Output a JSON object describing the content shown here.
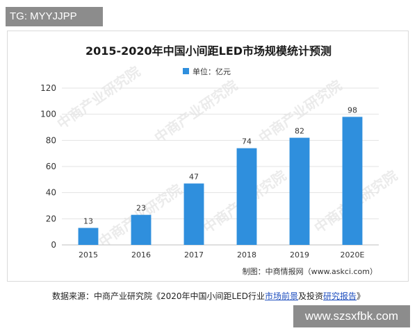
{
  "tag_label": "TG: MYYJJPP",
  "watermark_text": "中商产业研究院",
  "chart_data": {
    "type": "bar",
    "title": "2015-2020年中国小间距LED市场规模统计预测",
    "legend": "单位：亿元",
    "legend_position": "top-center",
    "categories": [
      "2015",
      "2016",
      "2017",
      "2018",
      "2019",
      "2020E"
    ],
    "series": [
      {
        "name": "单位：亿元",
        "values": [
          13,
          23,
          47,
          74,
          82,
          98
        ]
      }
    ],
    "data_labels": [
      "13",
      "23",
      "47",
      "74",
      "82",
      "98"
    ],
    "ylim": [
      0,
      120
    ],
    "yticks": [
      0,
      20,
      40,
      60,
      80,
      100,
      120
    ],
    "grid": true,
    "bar_color": "#2f8fdd",
    "credit": "制图：中商情报网（www.askci.com）"
  },
  "footer": {
    "prefix": "数据来源：中商产业研究院《2020年中国小间距LED行业",
    "link1": "市场前景",
    "middle": "及投资",
    "link2": "研究报告",
    "suffix": "》"
  },
  "url_badge": "www.szsxfbk.com"
}
